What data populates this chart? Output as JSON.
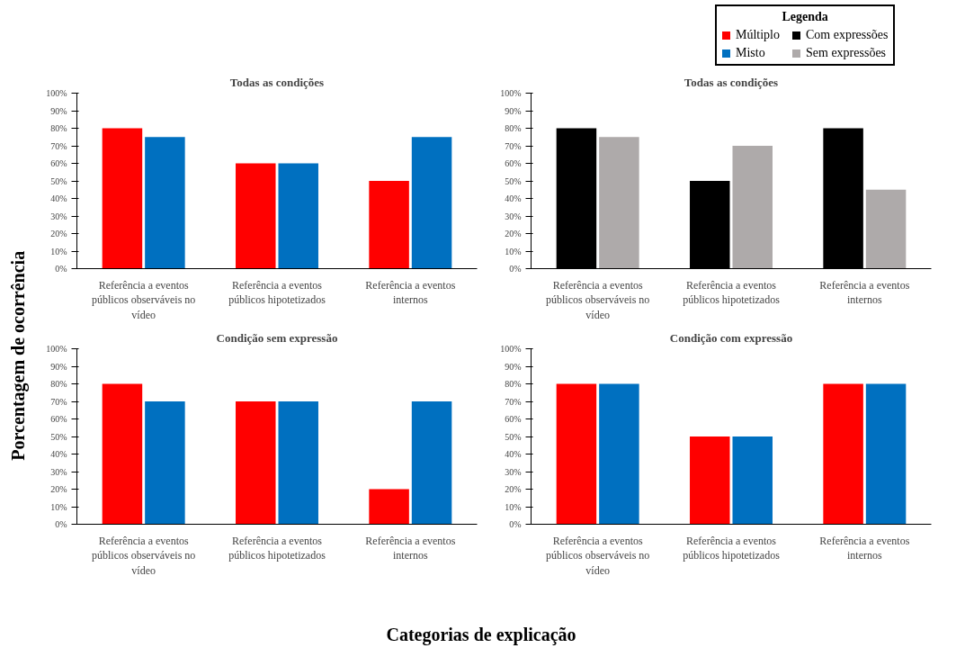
{
  "chart_data": [
    {
      "type": "bar",
      "title": "Todas as condições",
      "legend": "top right",
      "ylabel": "Porcentagem de ocorrência",
      "categories": [
        "Referência a eventos públicos observáveis no vídeo",
        "Referência a eventos públicos hipotetizados",
        "Referência a eventos internos"
      ],
      "ylim": [
        0,
        100
      ],
      "yticks": [
        {
          "value": 0,
          "label": "0%"
        },
        {
          "value": 10,
          "label": "10%"
        },
        {
          "value": 20,
          "label": "20%"
        },
        {
          "value": 30,
          "label": "30%"
        },
        {
          "value": 40,
          "label": "40%"
        },
        {
          "value": 50,
          "label": "50%"
        },
        {
          "value": 60,
          "label": "60%"
        },
        {
          "value": 70,
          "label": "70%"
        },
        {
          "value": 80,
          "label": "80%"
        },
        {
          "value": 90,
          "label": "90%"
        },
        {
          "value": 100,
          "label": "100%"
        }
      ],
      "grid": false,
      "series": [
        {
          "name": "Múltiplo",
          "color": "#ff0000",
          "values": [
            80,
            60,
            50
          ]
        },
        {
          "name": "Misto",
          "color": "#0070c0",
          "values": [
            75,
            60,
            75
          ]
        }
      ]
    },
    {
      "type": "bar",
      "title": "Todas as condições",
      "legend": "top right",
      "legend_title": "Legenda",
      "categories": [
        "Referência a eventos públicos observáveis no vídeo",
        "Referência a eventos públicos hipotetizados",
        "Referência a eventos internos"
      ],
      "ylim": [
        0,
        100
      ],
      "yticks": [
        {
          "value": 0,
          "label": "0%"
        },
        {
          "value": 10,
          "label": "10%"
        },
        {
          "value": 20,
          "label": "20%"
        },
        {
          "value": 30,
          "label": "30%"
        },
        {
          "value": 40,
          "label": "40%"
        },
        {
          "value": 50,
          "label": "50%"
        },
        {
          "value": 60,
          "label": "60%"
        },
        {
          "value": 70,
          "label": "70%"
        },
        {
          "value": 80,
          "label": "80%"
        },
        {
          "value": 90,
          "label": "90%"
        },
        {
          "value": 100,
          "label": "100%"
        }
      ],
      "grid": false,
      "series": [
        {
          "name": "Com expressões",
          "color": "#000000",
          "values": [
            80,
            50,
            80
          ]
        },
        {
          "name": "Sem expressões",
          "color": "#aeaaaa",
          "values": [
            75,
            70,
            45
          ]
        }
      ]
    },
    {
      "type": "bar",
      "title": "Condição sem expressão",
      "xlabel": "Categorias de explicação",
      "categories": [
        "Referência a eventos públicos observáveis no vídeo",
        "Referência a eventos públicos hipotetizados",
        "Referência a eventos internos"
      ],
      "ylim": [
        0,
        100
      ],
      "yticks": [
        {
          "value": 0,
          "label": "0%"
        },
        {
          "value": 10,
          "label": "10%"
        },
        {
          "value": 20,
          "label": "20%"
        },
        {
          "value": 30,
          "label": "30%"
        },
        {
          "value": 40,
          "label": "40%"
        },
        {
          "value": 50,
          "label": "50%"
        },
        {
          "value": 60,
          "label": "60%"
        },
        {
          "value": 70,
          "label": "70%"
        },
        {
          "value": 80,
          "label": "80%"
        },
        {
          "value": 90,
          "label": "90%"
        },
        {
          "value": 100,
          "label": "100%"
        }
      ],
      "grid": false,
      "series": [
        {
          "color": "#ff0000",
          "values": [
            80,
            70,
            20
          ]
        },
        {
          "color": "#0070c0",
          "values": [
            70,
            70,
            70
          ]
        }
      ]
    },
    {
      "type": "bar",
      "title": "Condição com expressão",
      "categories": [
        "Referência a eventos públicos observáveis no vídeo",
        "Referência a eventos públicos hipotetizados",
        "Referência a eventos internos"
      ],
      "ylim": [
        0,
        100
      ],
      "yticks": [
        {
          "value": 0,
          "label": "0%"
        },
        {
          "value": 10,
          "label": "10%"
        },
        {
          "value": 20,
          "label": "20%"
        },
        {
          "value": 30,
          "label": "30%"
        },
        {
          "value": 40,
          "label": "40%"
        },
        {
          "value": 50,
          "label": "50%"
        },
        {
          "value": 60,
          "label": "60%"
        },
        {
          "value": 70,
          "label": "70%"
        },
        {
          "value": 80,
          "label": "80%"
        },
        {
          "value": 90,
          "label": "90%"
        },
        {
          "value": 100,
          "label": "100%"
        }
      ],
      "grid": false,
      "series": [
        {
          "color": "#ff0000",
          "values": [
            80,
            50,
            80
          ]
        },
        {
          "color": "#0070c0",
          "values": [
            80,
            50,
            80
          ]
        }
      ]
    }
  ]
}
